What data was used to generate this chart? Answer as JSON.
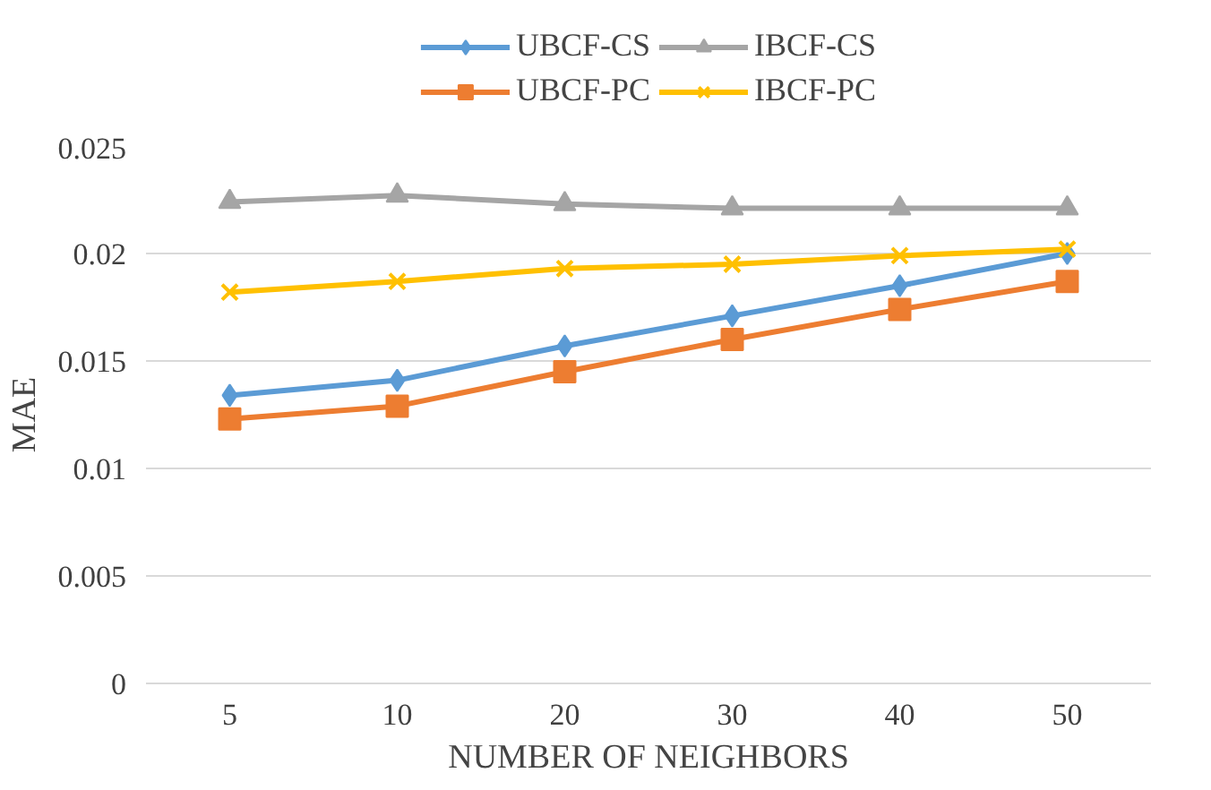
{
  "chart_data": {
    "type": "line",
    "xlabel": "NUMBER OF NEIGHBORS",
    "ylabel": "MAE",
    "categories": [
      "5",
      "10",
      "20",
      "30",
      "40",
      "50"
    ],
    "series": [
      {
        "name": "UBCF-CS",
        "color": "#5b9bd5",
        "marker": "diamond",
        "values": [
          0.0134,
          0.0141,
          0.0157,
          0.0171,
          0.0185,
          0.02
        ]
      },
      {
        "name": "UBCF-PC",
        "color": "#ed7d31",
        "marker": "square",
        "values": [
          0.0123,
          0.0129,
          0.0145,
          0.016,
          0.0174,
          0.0187
        ]
      },
      {
        "name": "IBCF-CS",
        "color": "#a5a5a5",
        "marker": "triangle",
        "values": [
          0.0224,
          0.0227,
          0.0223,
          0.0221,
          0.0221,
          0.0221
        ]
      },
      {
        "name": "IBCF-PC",
        "color": "#ffc000",
        "marker": "cross",
        "values": [
          0.0182,
          0.0187,
          0.0193,
          0.0195,
          0.0199,
          0.0202
        ]
      }
    ],
    "ylim": [
      0,
      0.025
    ],
    "yticks": [
      0,
      {
        "value": 0.005,
        "label": "0.005"
      },
      {
        "value": 0.01,
        "label": "0.01"
      },
      {
        "value": 0.015,
        "label": "0.015"
      },
      {
        "value": 0.02,
        "label": "0.02"
      },
      {
        "value": 0.025,
        "label": "0.025"
      }
    ],
    "grid": "y",
    "legend": "top"
  }
}
